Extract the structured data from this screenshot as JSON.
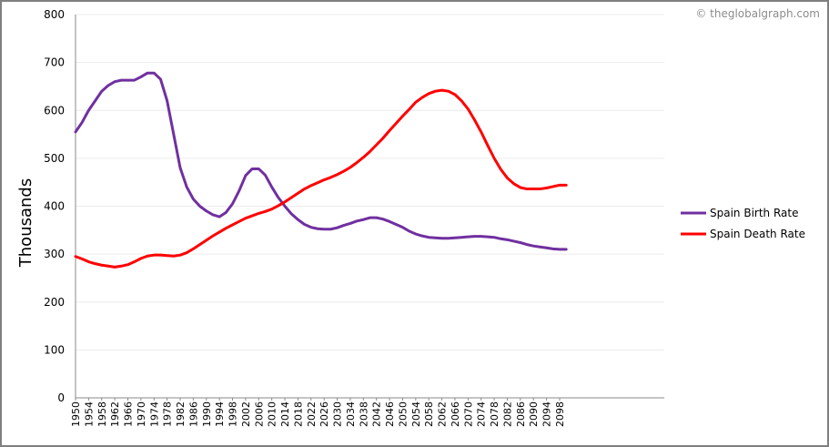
{
  "watermark": "© theglobalgraph.com",
  "chart_data": {
    "type": "line",
    "title": "",
    "xlabel": "",
    "ylabel": "Thousands",
    "ylim": [
      0,
      800
    ],
    "yticks": [
      0,
      100,
      200,
      300,
      400,
      500,
      600,
      700,
      800
    ],
    "xlim": [
      1950,
      2130
    ],
    "xticks": [
      1950,
      1954,
      1958,
      1962,
      1966,
      1970,
      1974,
      1978,
      1982,
      1986,
      1990,
      1994,
      1998,
      2002,
      2006,
      2010,
      2014,
      2018,
      2022,
      2026,
      2030,
      2034,
      2038,
      2042,
      2046,
      2050,
      2054,
      2058,
      2062,
      2066,
      2070,
      2074,
      2078,
      2082,
      2086,
      2090,
      2094,
      2098
    ],
    "grid": true,
    "legend_position": "right",
    "series": [
      {
        "name": "Spain Birth Rate",
        "color": "#7030a0",
        "x": [
          1950,
          1952,
          1954,
          1956,
          1958,
          1960,
          1962,
          1964,
          1966,
          1968,
          1970,
          1972,
          1974,
          1976,
          1978,
          1980,
          1982,
          1984,
          1986,
          1988,
          1990,
          1992,
          1994,
          1996,
          1998,
          2000,
          2002,
          2004,
          2006,
          2008,
          2010,
          2012,
          2014,
          2016,
          2018,
          2020,
          2022,
          2024,
          2026,
          2028,
          2030,
          2032,
          2034,
          2036,
          2038,
          2040,
          2042,
          2044,
          2046,
          2048,
          2050,
          2052,
          2054,
          2056,
          2058,
          2060,
          2062,
          2064,
          2066,
          2068,
          2070,
          2072,
          2074,
          2076,
          2078,
          2080,
          2082,
          2084,
          2086,
          2088,
          2090,
          2092,
          2094,
          2096,
          2098,
          2100
        ],
        "values": [
          555,
          575,
          600,
          620,
          640,
          652,
          660,
          663,
          663,
          663,
          670,
          678,
          678,
          665,
          620,
          550,
          480,
          440,
          415,
          400,
          390,
          382,
          378,
          387,
          405,
          432,
          464,
          478,
          478,
          465,
          440,
          418,
          400,
          384,
          372,
          362,
          356,
          353,
          352,
          352,
          355,
          360,
          364,
          369,
          372,
          376,
          376,
          373,
          368,
          362,
          356,
          348,
          342,
          338,
          335,
          334,
          333,
          333,
          334,
          335,
          336,
          337,
          337,
          336,
          335,
          332,
          330,
          327,
          324,
          320,
          317,
          315,
          313,
          311,
          310,
          310
        ]
      },
      {
        "name": "Spain Death Rate",
        "color": "#ff0000",
        "x": [
          1950,
          1952,
          1954,
          1956,
          1958,
          1960,
          1962,
          1964,
          1966,
          1968,
          1970,
          1972,
          1974,
          1976,
          1978,
          1980,
          1982,
          1984,
          1986,
          1988,
          1990,
          1992,
          1994,
          1996,
          1998,
          2000,
          2002,
          2004,
          2006,
          2008,
          2010,
          2012,
          2014,
          2016,
          2018,
          2020,
          2022,
          2024,
          2026,
          2028,
          2030,
          2032,
          2034,
          2036,
          2038,
          2040,
          2042,
          2044,
          2046,
          2048,
          2050,
          2052,
          2054,
          2056,
          2058,
          2060,
          2062,
          2064,
          2066,
          2068,
          2070,
          2072,
          2074,
          2076,
          2078,
          2080,
          2082,
          2084,
          2086,
          2088,
          2090,
          2092,
          2094,
          2096,
          2098,
          2100
        ],
        "values": [
          295,
          290,
          284,
          280,
          277,
          275,
          273,
          275,
          278,
          284,
          291,
          296,
          298,
          298,
          297,
          296,
          298,
          303,
          311,
          320,
          329,
          338,
          346,
          354,
          361,
          368,
          375,
          380,
          385,
          389,
          394,
          401,
          409,
          418,
          427,
          436,
          443,
          449,
          455,
          460,
          466,
          473,
          481,
          491,
          502,
          514,
          528,
          542,
          558,
          573,
          588,
          602,
          617,
          627,
          635,
          640,
          642,
          640,
          633,
          620,
          603,
          580,
          555,
          527,
          500,
          477,
          459,
          447,
          439,
          436,
          436,
          436,
          438,
          441,
          444,
          444
        ]
      }
    ]
  },
  "legend": [
    "Spain Birth Rate",
    "Spain Death Rate"
  ]
}
